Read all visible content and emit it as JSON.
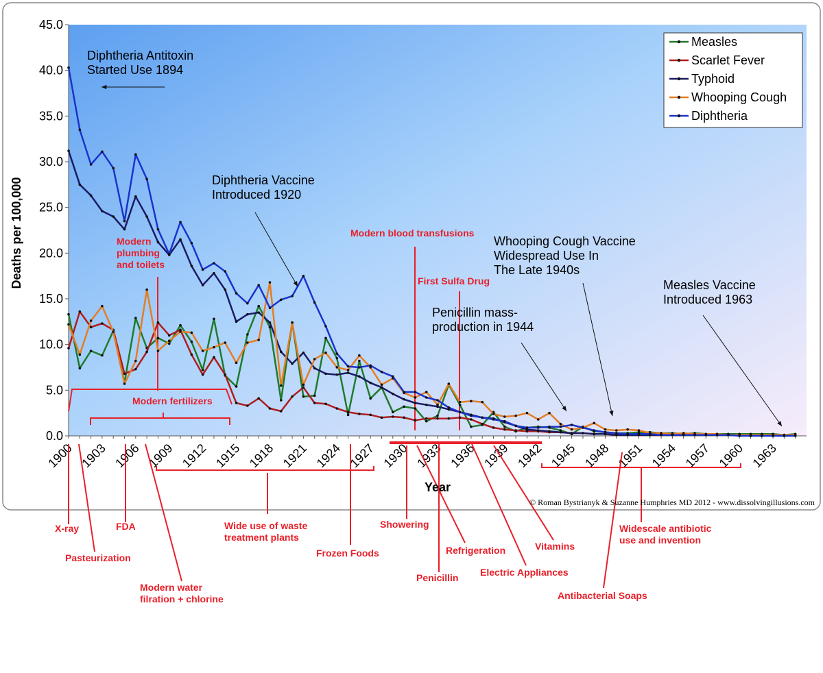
{
  "chart_data": {
    "type": "line",
    "title": "",
    "xlabel": "Year",
    "ylabel": "Deaths per 100,000",
    "ylim": [
      0,
      45
    ],
    "xlim": [
      1900,
      1966
    ],
    "y_ticks": [
      "0.0",
      "5.0",
      "10.0",
      "15.0",
      "20.0",
      "25.0",
      "30.0",
      "35.0",
      "40.0",
      "45.0"
    ],
    "x_ticks": [
      "1900",
      "1903",
      "1906",
      "1909",
      "1912",
      "1915",
      "1918",
      "1921",
      "1924",
      "1927",
      "1930",
      "1933",
      "1936",
      "1939",
      "1942",
      "1945",
      "1948",
      "1951",
      "1954",
      "1957",
      "1960",
      "1963"
    ],
    "legend_position": "top-right",
    "grid": false,
    "x": [
      1900,
      1901,
      1902,
      1903,
      1904,
      1905,
      1906,
      1907,
      1908,
      1909,
      1910,
      1911,
      1912,
      1913,
      1914,
      1915,
      1916,
      1917,
      1918,
      1919,
      1920,
      1921,
      1922,
      1923,
      1924,
      1925,
      1926,
      1927,
      1928,
      1929,
      1930,
      1931,
      1932,
      1933,
      1934,
      1935,
      1936,
      1937,
      1938,
      1939,
      1940,
      1941,
      1942,
      1943,
      1944,
      1945,
      1946,
      1947,
      1948,
      1949,
      1950,
      1951,
      1952,
      1953,
      1954,
      1955,
      1956,
      1957,
      1958,
      1959,
      1960,
      1961,
      1962,
      1963,
      1964,
      1965
    ],
    "series": [
      {
        "name": "Measles",
        "color": "#1f7a2a",
        "values": [
          13.3,
          7.4,
          9.3,
          8.8,
          11.5,
          5.8,
          12.9,
          9.6,
          10.7,
          10.1,
          12.1,
          10.3,
          7.2,
          12.8,
          6.6,
          5.4,
          11.1,
          14.2,
          11.9,
          3.9,
          12.4,
          4.3,
          4.4,
          10.7,
          8.5,
          2.3,
          8.2,
          4.1,
          5.3,
          2.6,
          3.2,
          3.0,
          1.6,
          2.2,
          5.6,
          3.4,
          1.0,
          1.2,
          2.6,
          1.0,
          0.5,
          0.9,
          1.0,
          0.9,
          0.6,
          0.2,
          1.0,
          0.5,
          0.4,
          0.3,
          0.3,
          0.4,
          0.4,
          0.3,
          0.3,
          0.2,
          0.3,
          0.2,
          0.2,
          0.2,
          0.2,
          0.2,
          0.2,
          0.2,
          0.1,
          0.2
        ]
      },
      {
        "name": "Scarlet Fever",
        "color": "#b01c1c",
        "values": [
          9.6,
          13.6,
          11.9,
          12.3,
          11.6,
          6.8,
          7.3,
          9.2,
          12.4,
          11.0,
          11.6,
          8.9,
          6.7,
          8.6,
          6.7,
          3.6,
          3.3,
          4.1,
          3.0,
          2.7,
          4.3,
          5.3,
          3.6,
          3.5,
          3.0,
          2.6,
          2.4,
          2.3,
          2.0,
          2.1,
          2.0,
          1.7,
          1.9,
          1.9,
          1.9,
          2.0,
          1.8,
          1.3,
          0.9,
          0.7,
          0.6,
          0.5,
          0.5,
          0.4,
          0.4,
          0.3,
          0.3,
          0.2,
          0.2,
          0.1,
          0.1,
          0.1,
          0.1,
          0.1,
          0.1,
          0.1,
          0.1,
          0.1,
          0.1,
          0.1,
          0.1,
          0.1,
          0.1,
          0.1,
          0.1,
          0.1
        ]
      },
      {
        "name": "Typhoid",
        "color": "#1a1a66",
        "values": [
          31.2,
          27.5,
          26.3,
          24.6,
          24.0,
          22.6,
          26.2,
          24.0,
          21.2,
          19.8,
          21.5,
          18.6,
          16.5,
          17.8,
          16.0,
          12.5,
          13.3,
          13.5,
          12.4,
          9.2,
          7.9,
          9.1,
          7.4,
          6.8,
          6.7,
          6.9,
          6.5,
          5.8,
          5.3,
          4.6,
          4.0,
          3.6,
          3.4,
          3.2,
          2.9,
          2.6,
          2.3,
          2.0,
          1.9,
          1.5,
          1.1,
          0.7,
          0.6,
          0.5,
          0.4,
          0.3,
          0.3,
          0.2,
          0.2,
          0.1,
          0.1,
          0.1,
          0.1,
          0.1,
          0.1,
          0.1,
          0.1,
          0.1,
          0.1,
          0.1,
          0.1,
          0.1,
          0.1,
          0.1,
          0.1,
          0.1
        ]
      },
      {
        "name": "Whooping Cough",
        "color": "#e67d22",
        "values": [
          12.2,
          8.9,
          12.6,
          14.2,
          11.4,
          5.7,
          8.2,
          16.0,
          9.3,
          10.4,
          11.4,
          11.3,
          9.3,
          9.7,
          10.2,
          8.0,
          10.2,
          10.5,
          16.8,
          5.5,
          12.4,
          5.6,
          8.4,
          9.1,
          7.5,
          7.2,
          8.8,
          7.5,
          5.6,
          6.3,
          4.7,
          4.2,
          4.8,
          3.4,
          5.7,
          3.7,
          3.8,
          3.7,
          2.4,
          2.1,
          2.2,
          2.5,
          1.8,
          2.5,
          1.3,
          0.7,
          0.9,
          1.4,
          0.7,
          0.6,
          0.7,
          0.6,
          0.3,
          0.3,
          0.2,
          0.3,
          0.2,
          0.2,
          0.2,
          0.1,
          0.1,
          0.1,
          0.1,
          0.1,
          0.1,
          0.1
        ]
      },
      {
        "name": "Diphtheria",
        "color": "#1a33cc",
        "values": [
          40.3,
          33.5,
          29.7,
          31.1,
          29.3,
          23.5,
          30.8,
          28.1,
          22.6,
          19.9,
          23.4,
          21.1,
          18.2,
          18.9,
          18.0,
          15.6,
          14.5,
          16.5,
          14.0,
          14.9,
          15.3,
          17.5,
          14.6,
          12.0,
          9.0,
          7.6,
          7.5,
          7.7,
          7.0,
          6.5,
          4.8,
          4.8,
          4.2,
          3.9,
          3.1,
          2.6,
          2.2,
          2.0,
          1.8,
          1.6,
          1.1,
          0.9,
          0.9,
          1.0,
          1.0,
          1.2,
          0.9,
          0.6,
          0.4,
          0.3,
          0.2,
          0.2,
          0.2,
          0.1,
          0.1,
          0.1,
          0.1,
          0.1,
          0.1,
          0.1,
          0.0,
          0.0,
          0.0,
          0.0,
          0.0,
          0.0
        ]
      }
    ],
    "annotations": [
      {
        "lines": [
          "Diphtheria Antitoxin",
          "Started Use 1894"
        ]
      },
      {
        "lines": [
          "Diphtheria Vaccine",
          "Introduced 1920"
        ]
      },
      {
        "lines": [
          "Whooping Cough Vaccine",
          "Widespread Use In",
          "The Late 1940s"
        ]
      },
      {
        "lines": [
          "Penicillin mass-",
          "production in 1944"
        ]
      },
      {
        "lines": [
          "Measles Vaccine",
          "Introduced 1963"
        ]
      }
    ],
    "events_inside": [
      {
        "lines": [
          "Modern",
          "plumbing",
          "and toilets"
        ]
      },
      {
        "lines": [
          "Modern fertilizers"
        ]
      },
      {
        "lines": [
          "Modern blood transfusions"
        ]
      },
      {
        "lines": [
          "First Sulfa Drug"
        ]
      }
    ],
    "events_below": [
      {
        "lines": [
          "X-ray"
        ]
      },
      {
        "lines": [
          "Pasteurization"
        ]
      },
      {
        "lines": [
          "FDA"
        ]
      },
      {
        "lines": [
          "Modern water",
          "filration + chlorine"
        ]
      },
      {
        "lines": [
          "Wide use of waste",
          "treatment plants"
        ]
      },
      {
        "lines": [
          "Frozen Foods"
        ]
      },
      {
        "lines": [
          "Showering"
        ]
      },
      {
        "lines": [
          "Penicillin"
        ]
      },
      {
        "lines": [
          "Refrigeration"
        ]
      },
      {
        "lines": [
          "Electric Appliances"
        ]
      },
      {
        "lines": [
          "Vitamins"
        ]
      },
      {
        "lines": [
          "Antibacterial Soaps"
        ]
      },
      {
        "lines": [
          "Widescale antibiotic",
          "use and invention"
        ]
      }
    ],
    "credit": "© Roman Bystrianyk & Suzanne Humphries MD 2012 - www.dissolvingillusions.com"
  }
}
